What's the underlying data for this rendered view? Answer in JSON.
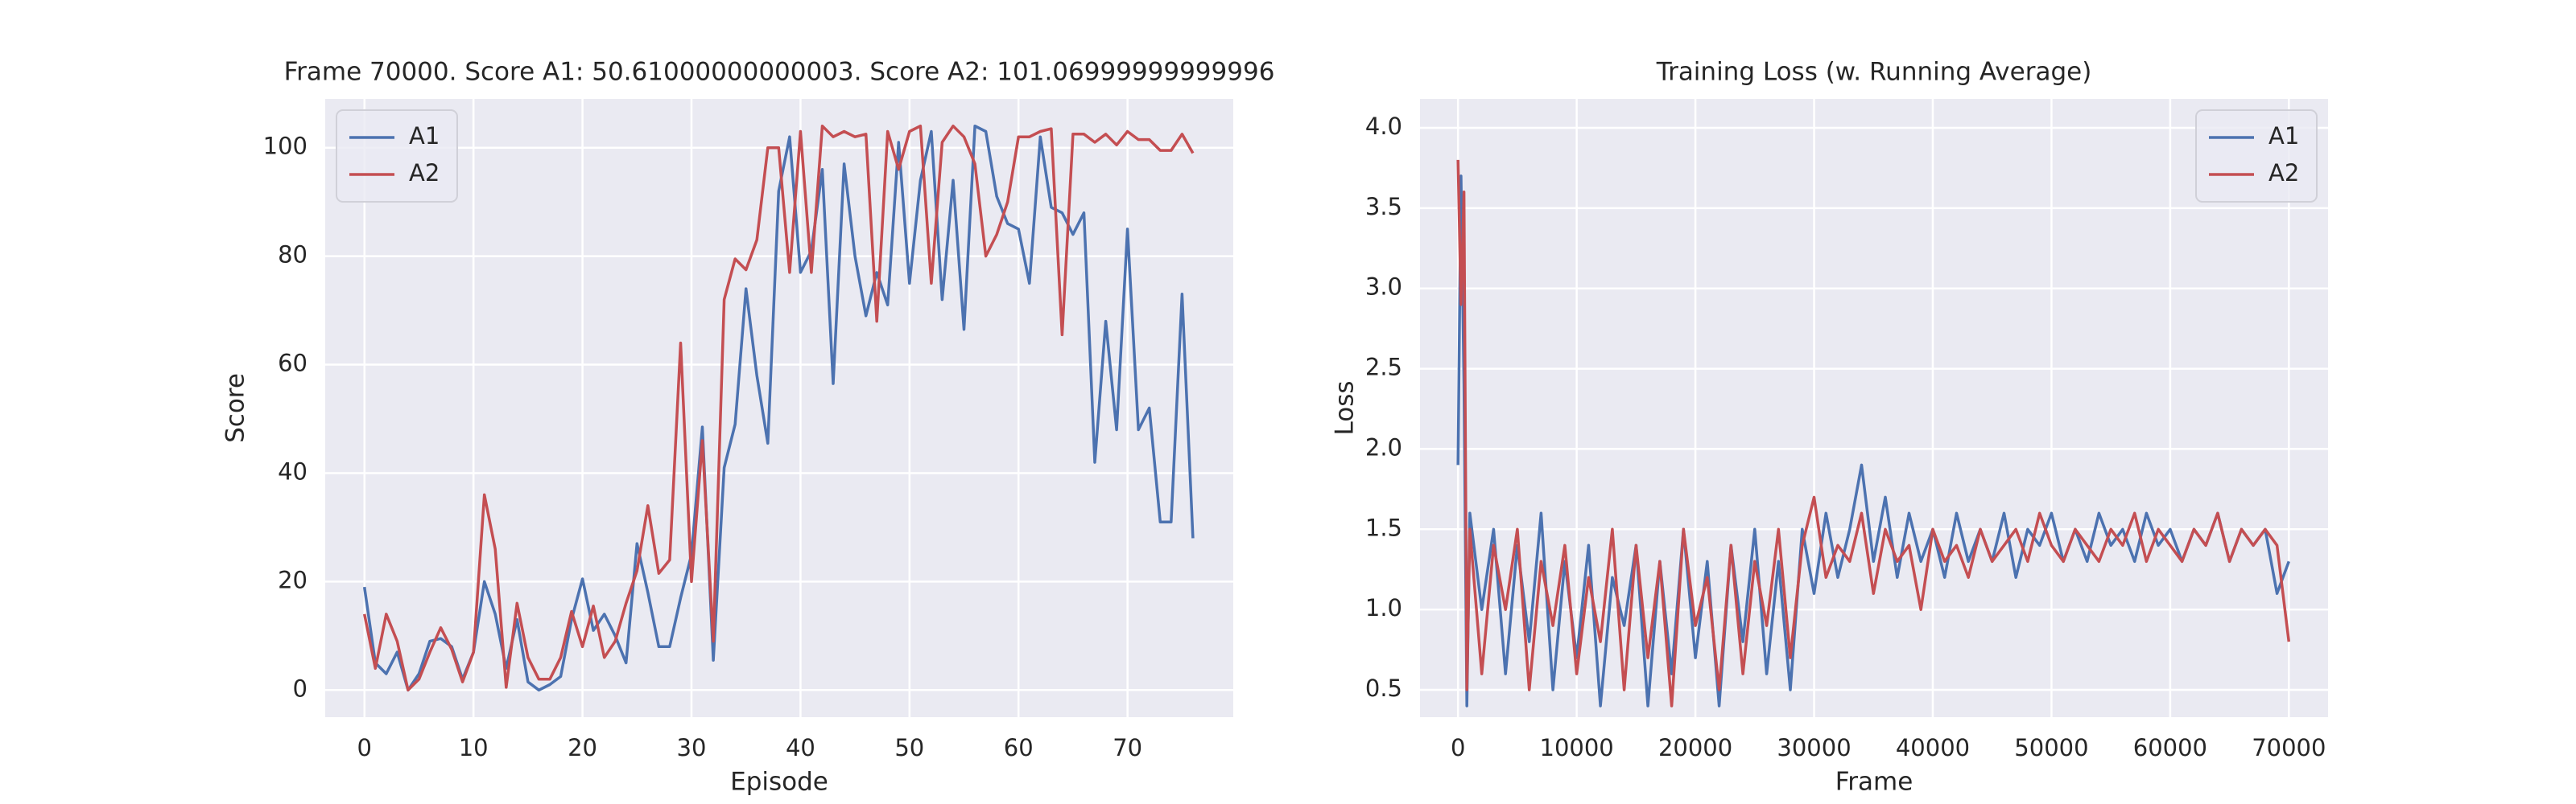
{
  "chart_data": [
    {
      "type": "line",
      "title": "Frame 70000. Score A1: 50.61000000000003. Score A2: 101.06999999999996",
      "xlabel": "Episode",
      "ylabel": "Score",
      "x": [
        0,
        1,
        2,
        3,
        4,
        5,
        6,
        7,
        8,
        9,
        10,
        11,
        12,
        13,
        14,
        15,
        16,
        17,
        18,
        19,
        20,
        21,
        22,
        23,
        24,
        25,
        26,
        27,
        28,
        29,
        30,
        31,
        32,
        33,
        34,
        35,
        36,
        37,
        38,
        39,
        40,
        41,
        42,
        43,
        44,
        45,
        46,
        47,
        48,
        49,
        50,
        51,
        52,
        53,
        54,
        55,
        56,
        57,
        58,
        59,
        60,
        61,
        62,
        63,
        64,
        65,
        66,
        67,
        68,
        69,
        70,
        71,
        72,
        73,
        74,
        75,
        76
      ],
      "series": [
        {
          "name": "A1",
          "color": "#4c72b0",
          "values": [
            19,
            5,
            3,
            7,
            0,
            3,
            9,
            9.5,
            8,
            2,
            7,
            20,
            14,
            4,
            13,
            1.5,
            0,
            1,
            2.5,
            13,
            20.5,
            11,
            14,
            10,
            5,
            27,
            18,
            8,
            8,
            17,
            25,
            48.5,
            5.5,
            41,
            49,
            74,
            58,
            45.5,
            92,
            102,
            77,
            81,
            96,
            56.5,
            97,
            80,
            69,
            77,
            71,
            101,
            75,
            94,
            103,
            72,
            94,
            66.5,
            104,
            103,
            91,
            86,
            85,
            75,
            102,
            89,
            88,
            84,
            88,
            42,
            68,
            48,
            85,
            48,
            52,
            31,
            31,
            73,
            28
          ]
        },
        {
          "name": "A2",
          "color": "#c44e52",
          "values": [
            14,
            4,
            14,
            9,
            0,
            2,
            7,
            11.5,
            7.5,
            1.5,
            7,
            36,
            26,
            0.5,
            16,
            6,
            2,
            2,
            6,
            14.5,
            8,
            15.5,
            6,
            9,
            16,
            22,
            34,
            21.5,
            24,
            64,
            20,
            46,
            9,
            72,
            79.5,
            77.5,
            83,
            100,
            100,
            77,
            103,
            77,
            104,
            102,
            103,
            102,
            102.5,
            68,
            103,
            96,
            103,
            104,
            75,
            101,
            104,
            102,
            97,
            80,
            84,
            90,
            102,
            102,
            103,
            103.5,
            65.5,
            102.5,
            102.5,
            101,
            102.5,
            100.5,
            103,
            101.5,
            101.5,
            99.5,
            99.5,
            102.5,
            99
          ]
        }
      ],
      "xlim": [
        -3.6,
        79.7
      ],
      "xticks": [
        0,
        10,
        20,
        30,
        40,
        50,
        60,
        70
      ],
      "ylim": [
        -5,
        109
      ],
      "yticks": [
        0,
        20,
        40,
        60,
        80,
        100
      ],
      "grid": true,
      "legend": "upper left"
    },
    {
      "type": "line",
      "title": "Training Loss (w. Running Average)",
      "xlabel": "Frame",
      "ylabel": "Loss",
      "x": [
        0,
        250,
        500,
        750,
        1000,
        2000,
        3000,
        4000,
        5000,
        6000,
        7000,
        8000,
        9000,
        10000,
        11000,
        12000,
        13000,
        14000,
        15000,
        16000,
        17000,
        18000,
        19000,
        20000,
        21000,
        22000,
        23000,
        24000,
        25000,
        26000,
        27000,
        28000,
        29000,
        30000,
        31000,
        32000,
        33000,
        34000,
        35000,
        36000,
        37000,
        38000,
        39000,
        40000,
        41000,
        42000,
        43000,
        44000,
        45000,
        46000,
        47000,
        48000,
        49000,
        50000,
        51000,
        52000,
        53000,
        54000,
        55000,
        56000,
        57000,
        58000,
        59000,
        60000,
        61000,
        62000,
        63000,
        64000,
        65000,
        66000,
        67000,
        68000,
        69000,
        70000
      ],
      "series": [
        {
          "name": "A1",
          "color": "#4c72b0",
          "values": [
            1.9,
            3.7,
            2.4,
            0.4,
            1.6,
            1.0,
            1.5,
            0.6,
            1.4,
            0.8,
            1.6,
            0.5,
            1.3,
            0.7,
            1.4,
            0.4,
            1.2,
            0.9,
            1.4,
            0.4,
            1.3,
            0.6,
            1.5,
            0.7,
            1.3,
            0.4,
            1.4,
            0.8,
            1.5,
            0.6,
            1.3,
            0.5,
            1.5,
            1.1,
            1.6,
            1.2,
            1.5,
            1.9,
            1.3,
            1.7,
            1.2,
            1.6,
            1.3,
            1.5,
            1.2,
            1.6,
            1.3,
            1.5,
            1.3,
            1.6,
            1.2,
            1.5,
            1.4,
            1.6,
            1.3,
            1.5,
            1.3,
            1.6,
            1.4,
            1.5,
            1.3,
            1.6,
            1.4,
            1.5,
            1.3,
            1.5,
            1.4,
            1.6,
            1.3,
            1.5,
            1.4,
            1.5,
            1.1,
            1.3
          ]
        },
        {
          "name": "A2",
          "color": "#c44e52",
          "values": [
            3.8,
            2.9,
            3.6,
            0.5,
            1.5,
            0.6,
            1.4,
            1.0,
            1.5,
            0.5,
            1.3,
            0.9,
            1.4,
            0.6,
            1.2,
            0.8,
            1.5,
            0.5,
            1.4,
            0.7,
            1.3,
            0.4,
            1.5,
            0.9,
            1.2,
            0.5,
            1.4,
            0.6,
            1.3,
            0.9,
            1.5,
            0.7,
            1.4,
            1.7,
            1.2,
            1.4,
            1.3,
            1.6,
            1.1,
            1.5,
            1.3,
            1.4,
            1.0,
            1.5,
            1.3,
            1.4,
            1.2,
            1.5,
            1.3,
            1.4,
            1.5,
            1.3,
            1.6,
            1.4,
            1.3,
            1.5,
            1.4,
            1.3,
            1.5,
            1.4,
            1.6,
            1.3,
            1.5,
            1.4,
            1.3,
            1.5,
            1.4,
            1.6,
            1.3,
            1.5,
            1.4,
            1.5,
            1.4,
            0.8
          ]
        }
      ],
      "xlim": [
        -3200,
        73300
      ],
      "xticks": [
        0,
        10000,
        20000,
        30000,
        40000,
        50000,
        60000,
        70000
      ],
      "ylim": [
        0.33,
        4.18
      ],
      "yticks": [
        0.5,
        {
          "value": 1,
          "label": "1.0"
        },
        1.5,
        {
          "value": 2,
          "label": "2.0"
        },
        2.5,
        {
          "value": 3,
          "label": "3.0"
        },
        3.5,
        {
          "value": 4,
          "label": "4.0"
        }
      ],
      "grid": true,
      "legend": "upper right"
    }
  ]
}
